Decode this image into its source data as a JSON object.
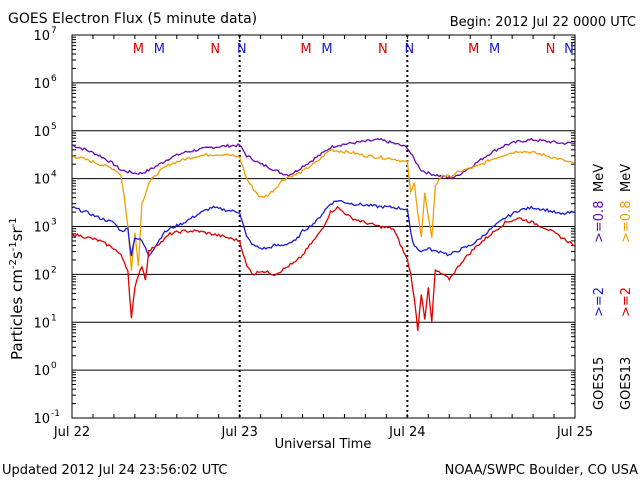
{
  "chart_data": {
    "type": "line",
    "title": "GOES Electron Flux (5 minute data)",
    "begin_label": "Begin: 2012 Jul 22 0000 UTC",
    "xlabel": "Universal Time",
    "ylabel": "Particles cm⁻²s⁻¹sr⁻¹",
    "ylabel_parts": {
      "base": "Particles cm",
      "e1": "-2",
      "mid1": "s",
      "e2": "-1",
      "mid2": "sr",
      "e3": "-1"
    },
    "y_scale": "log",
    "ylim_exp": [
      -1,
      7
    ],
    "y_ticks": [
      {
        "exp": "-1"
      },
      {
        "exp": "0"
      },
      {
        "exp": "1"
      },
      {
        "exp": "2"
      },
      {
        "exp": "3"
      },
      {
        "exp": "4"
      },
      {
        "exp": "5"
      },
      {
        "exp": "6"
      },
      {
        "exp": "7"
      }
    ],
    "xlim_hours": [
      0,
      72
    ],
    "x_ticks": [
      {
        "label": "Jul 22",
        "hour": 0
      },
      {
        "label": "Jul 23",
        "hour": 24
      },
      {
        "label": "Jul 24",
        "hour": 48
      },
      {
        "label": "Jul 25",
        "hour": 72
      }
    ],
    "threshold": 1000,
    "markers": [
      {
        "label": "M",
        "hour": 9.5,
        "color": "#e00000"
      },
      {
        "label": "M",
        "hour": 12.5,
        "color": "#1a1ad6"
      },
      {
        "label": "N",
        "hour": 20.5,
        "color": "#e00000"
      },
      {
        "label": "N",
        "hour": 24.3,
        "color": "#1a1ad6"
      },
      {
        "label": "M",
        "hour": 33.5,
        "color": "#e00000"
      },
      {
        "label": "M",
        "hour": 36.5,
        "color": "#1a1ad6"
      },
      {
        "label": "N",
        "hour": 44.5,
        "color": "#e00000"
      },
      {
        "label": "N",
        "hour": 48.3,
        "color": "#1a1ad6"
      },
      {
        "label": "M",
        "hour": 57.5,
        "color": "#e00000"
      },
      {
        "label": "M",
        "hour": 60.5,
        "color": "#1a1ad6"
      },
      {
        "label": "N",
        "hour": 68.5,
        "color": "#e00000"
      },
      {
        "label": "N",
        "hour": 72.3,
        "color": "#1a1ad6"
      }
    ],
    "legend": [
      {
        "label": "GOES15 >=2 MeV",
        "color": "#1a1ad6"
      },
      {
        "label": "GOES15 >=0.8 MeV",
        "color": "#6a0ab0"
      },
      {
        "label": "GOES13 >=2 MeV",
        "color": "#e00000"
      },
      {
        "label": "GOES13 >=0.8 MeV",
        "color": "#f0a000"
      }
    ],
    "legend_text": {
      "goes15": "GOES15",
      "goes13": "GOES13",
      "g15_2": ">=2",
      "g15_08": ">=0.8",
      "g13_2": ">=2",
      "g13_08": ">=0.8",
      "mev1": "MeV",
      "mev2": "MeV"
    },
    "series": [
      {
        "name": "GOES15 >=0.8 MeV",
        "color": "#6a0ab0",
        "hours": [
          0,
          2,
          4,
          6,
          7,
          8,
          9,
          10,
          11,
          12,
          13,
          14,
          16,
          18,
          20,
          22,
          24,
          25,
          26,
          27,
          28,
          29,
          30,
          31,
          32,
          33,
          34,
          35,
          36,
          37,
          38,
          40,
          42,
          44,
          46,
          48,
          49,
          50,
          51,
          52,
          53,
          54,
          55,
          56,
          57,
          58,
          60,
          62,
          64,
          66,
          68,
          70,
          72
        ],
        "values": [
          50000,
          40000,
          30000,
          20000,
          15000,
          14000,
          13000,
          13000,
          15000,
          18000,
          22000,
          27000,
          35000,
          40000,
          45000,
          48000,
          50000,
          30000,
          25000,
          20000,
          18000,
          15000,
          13000,
          12000,
          14000,
          18000,
          22000,
          28000,
          35000,
          45000,
          50000,
          55000,
          60000,
          65000,
          55000,
          45000,
          25000,
          15000,
          13000,
          12000,
          11000,
          10500,
          11000,
          14000,
          17000,
          22000,
          35000,
          50000,
          60000,
          65000,
          60000,
          55000,
          55000
        ]
      },
      {
        "name": "GOES13 >=0.8 MeV",
        "color": "#f0a000",
        "hours": [
          0,
          2,
          4,
          6,
          7,
          7.5,
          8,
          8.5,
          9,
          9.5,
          10,
          11,
          12,
          13,
          14,
          16,
          18,
          20,
          22,
          24,
          25,
          26,
          27,
          28,
          29,
          30,
          31,
          32,
          33,
          34,
          35,
          36,
          37,
          38,
          40,
          42,
          44,
          46,
          48,
          48.5,
          49,
          49.5,
          50,
          50.5,
          51,
          51.5,
          52,
          53,
          54,
          56,
          58,
          60,
          62,
          64,
          66,
          68,
          70,
          72
        ],
        "values": [
          30000,
          25000,
          20000,
          16000,
          12000,
          4000,
          1000,
          120,
          800,
          150,
          3000,
          8000,
          12000,
          16000,
          20000,
          25000,
          30000,
          32000,
          32000,
          28000,
          10000,
          6000,
          4000,
          4500,
          6000,
          9000,
          11000,
          12000,
          14000,
          18000,
          22000,
          30000,
          40000,
          38000,
          35000,
          30000,
          28000,
          26000,
          22000,
          5000,
          8000,
          2000,
          600,
          5000,
          1500,
          600,
          7000,
          12000,
          11000,
          15000,
          18000,
          25000,
          32000,
          38000,
          35000,
          30000,
          25000,
          20000
        ]
      },
      {
        "name": "GOES15 >=2 MeV",
        "color": "#1a1ad6",
        "hours": [
          0,
          2,
          4,
          6,
          7,
          8,
          8.5,
          9,
          10,
          11,
          12,
          13,
          14,
          16,
          18,
          20,
          22,
          24,
          25,
          26,
          27,
          28,
          29,
          30,
          31,
          32,
          33,
          34,
          35,
          36,
          37,
          38,
          40,
          42,
          44,
          46,
          48,
          48.5,
          49,
          50,
          51,
          52,
          53,
          54,
          55,
          56,
          57,
          58,
          60,
          62,
          64,
          66,
          68,
          70,
          72
        ],
        "values": [
          2500,
          2000,
          1500,
          1200,
          800,
          900,
          250,
          600,
          500,
          250,
          400,
          700,
          900,
          1200,
          1800,
          2500,
          2200,
          2000,
          600,
          400,
          350,
          350,
          400,
          400,
          450,
          500,
          800,
          1000,
          1300,
          2000,
          3000,
          3500,
          3000,
          2800,
          2600,
          2500,
          2300,
          700,
          400,
          300,
          350,
          300,
          300,
          250,
          300,
          350,
          400,
          500,
          900,
          1500,
          2200,
          2500,
          2200,
          1800,
          2000
        ]
      },
      {
        "name": "GOES13 >=2 MeV",
        "color": "#e00000",
        "hours": [
          0,
          2,
          4,
          6,
          7,
          7.5,
          8,
          8.5,
          9,
          9.5,
          10,
          10.5,
          11,
          12,
          13,
          14,
          16,
          18,
          20,
          22,
          24,
          25,
          26,
          27,
          28,
          29,
          30,
          31,
          32,
          33,
          34,
          35,
          36,
          37,
          38,
          40,
          42,
          44,
          46,
          48,
          48.5,
          49,
          49.5,
          50,
          50.5,
          51,
          51.5,
          52,
          53,
          54,
          56,
          58,
          60,
          62,
          64,
          66,
          68,
          70,
          72
        ],
        "values": [
          700,
          600,
          500,
          350,
          250,
          180,
          120,
          12,
          50,
          100,
          150,
          80,
          300,
          400,
          500,
          700,
          800,
          800,
          700,
          600,
          500,
          150,
          100,
          120,
          110,
          100,
          120,
          150,
          180,
          250,
          400,
          600,
          1000,
          2000,
          2500,
          1500,
          1200,
          1000,
          900,
          200,
          100,
          30,
          7,
          40,
          12,
          50,
          10,
          120,
          100,
          80,
          200,
          400,
          700,
          1200,
          1500,
          1200,
          900,
          600,
          400
        ]
      }
    ]
  },
  "footer": {
    "updated": "Updated 2012 Jul 24 23:56:02 UTC",
    "credit": "NOAA/SWPC Boulder, CO USA"
  },
  "colors": {
    "purple": "#6a0ab0",
    "orange": "#f0a000",
    "blue": "#1a1ad6",
    "red": "#e00000"
  }
}
